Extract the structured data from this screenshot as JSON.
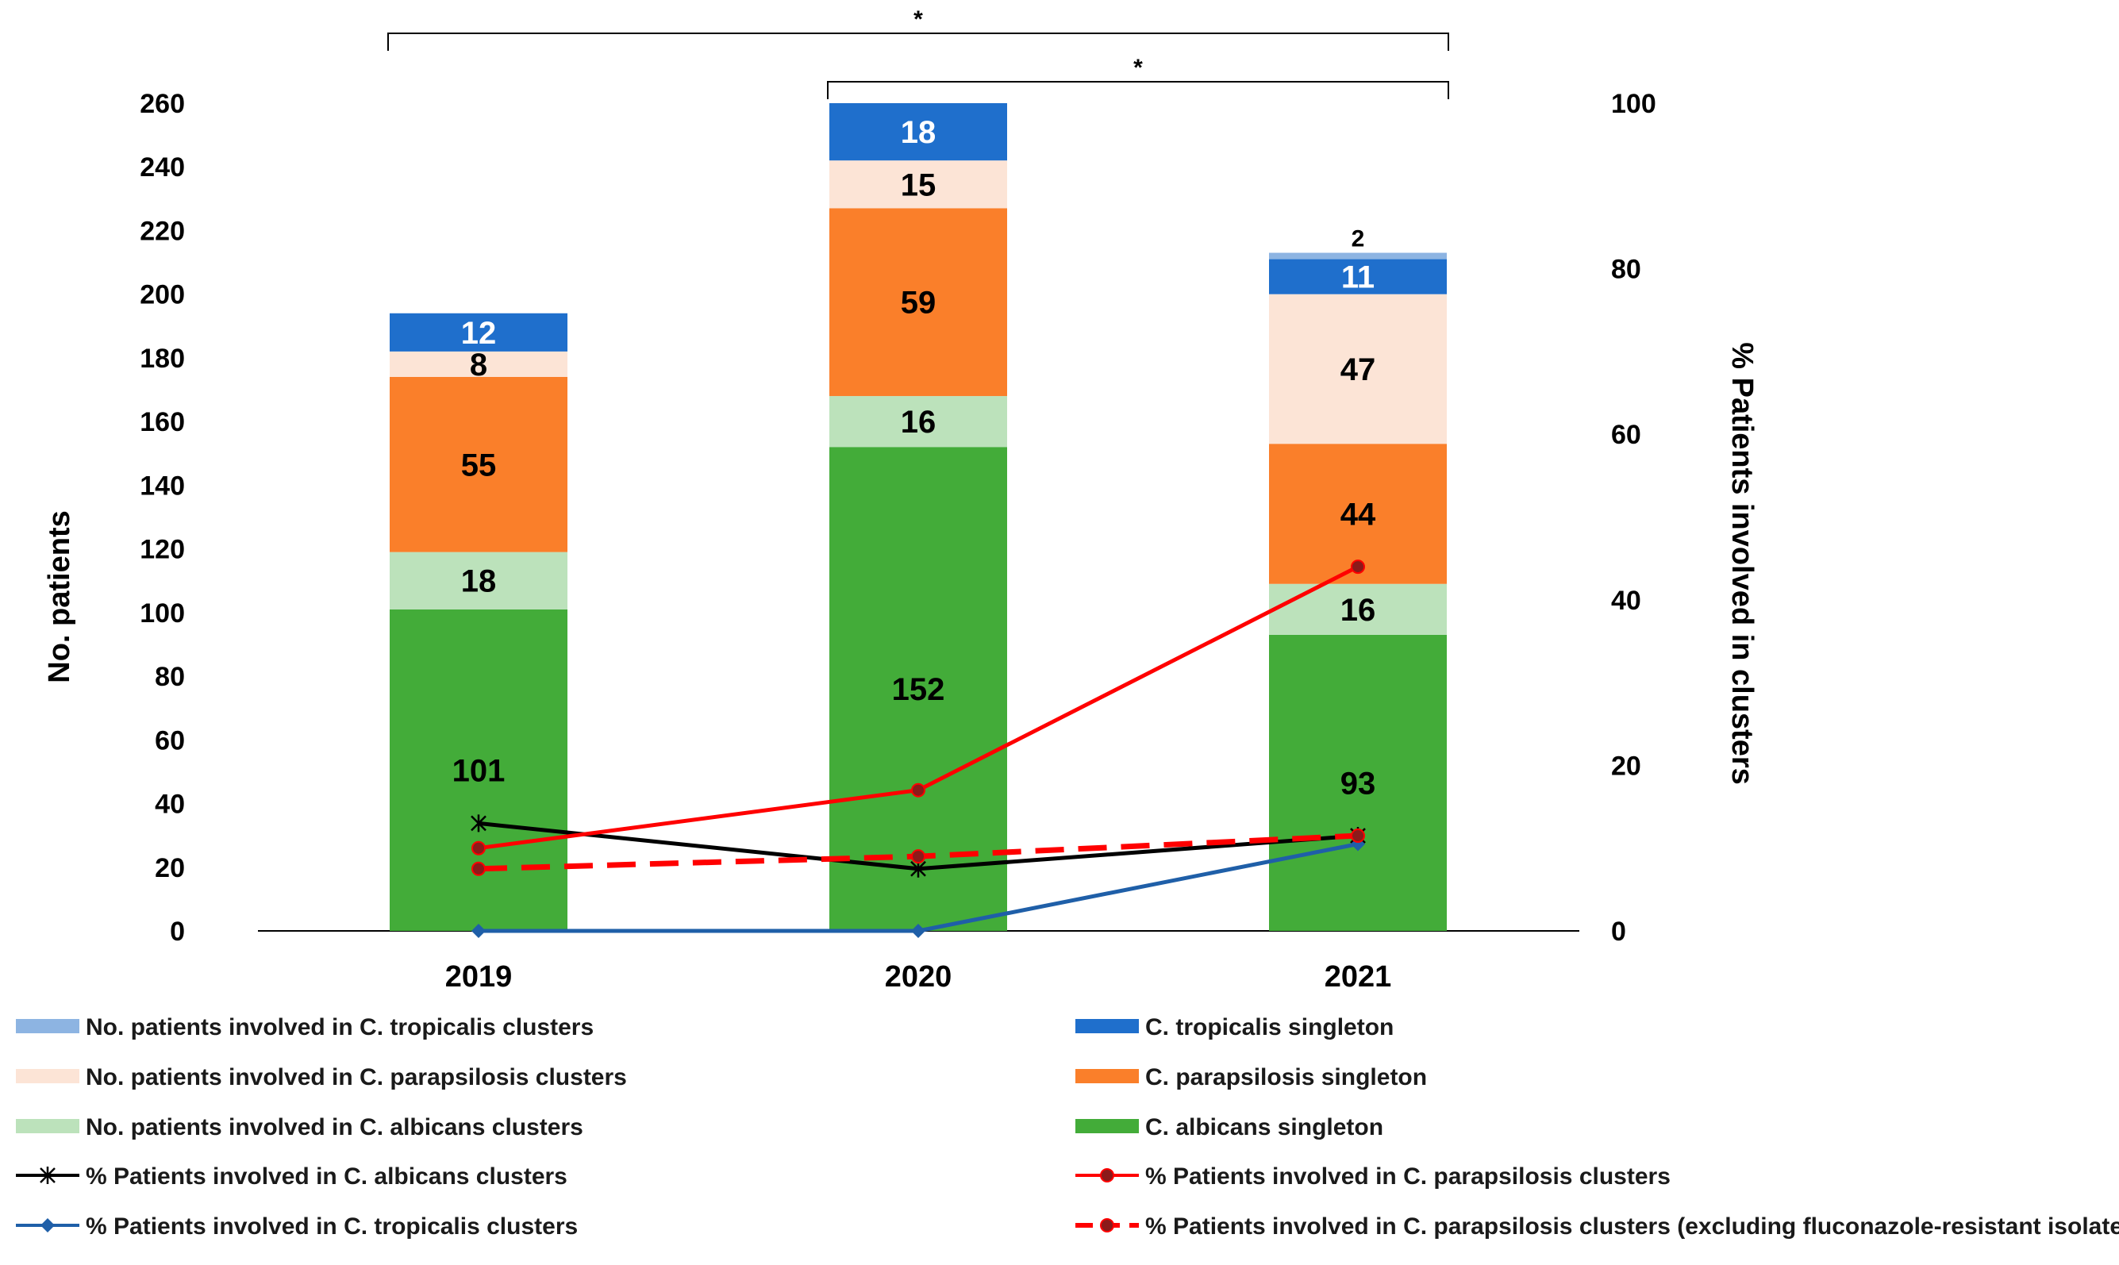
{
  "chart_data": {
    "type": "bar",
    "categories": [
      "2019",
      "2020",
      "2021"
    ],
    "y_left": {
      "label": "No. patients",
      "min": 0,
      "max": 260,
      "step": 20,
      "ticks": [
        "0",
        "20",
        "40",
        "60",
        "80",
        "100",
        "120",
        "140",
        "160",
        "180",
        "200",
        "220",
        "240",
        "260"
      ]
    },
    "y_right": {
      "label": "% Patients involved in clusters",
      "min": 0,
      "max": 100,
      "step": 20,
      "ticks": [
        "0",
        "20",
        "40",
        "60",
        "80",
        "100"
      ]
    },
    "bar_series": [
      {
        "name": "C. albicans singleton",
        "color": "#43AC39",
        "label_color": "#000000",
        "values": [
          101,
          152,
          93
        ],
        "labels": [
          "101",
          "152",
          "93"
        ]
      },
      {
        "name": "No. patients involved in C. albicans clusters",
        "color": "#BCE2BB",
        "label_color": "#000000",
        "values": [
          18,
          16,
          16
        ],
        "labels": [
          "18",
          "16",
          "16"
        ]
      },
      {
        "name": "C. parapsilosis singleton",
        "color": "#FA7F2A",
        "label_color": "#000000",
        "values": [
          55,
          59,
          44
        ],
        "labels": [
          "55",
          "59",
          "44"
        ]
      },
      {
        "name": "No. patients involved in C. parapsilosis clusters",
        "color": "#FCE4D6",
        "label_color": "#000000",
        "values": [
          8,
          15,
          47
        ],
        "labels": [
          "8",
          "15",
          "47"
        ]
      },
      {
        "name": "C. tropicalis singleton",
        "color": "#1F6FCC",
        "label_color": "#FFFFFF",
        "values": [
          12,
          18,
          11
        ],
        "labels": [
          "12",
          "18",
          "11"
        ]
      },
      {
        "name": "No. patients involved in C. tropicalis clusters",
        "color": "#8DB4E2",
        "label_color": "#000000",
        "values": [
          0,
          0,
          2
        ],
        "labels": [
          "",
          "",
          "2"
        ]
      }
    ],
    "line_series": [
      {
        "name": "% Patients involved in C. albicans clusters",
        "color": "#000000",
        "dash": "solid",
        "marker": "asterisk",
        "values": [
          13.0,
          7.5,
          11.5
        ]
      },
      {
        "name": "% Patients involved in C. tropicalis clusters",
        "color": "#1F5FA8",
        "dash": "solid",
        "marker": "diamond",
        "values": [
          0,
          0,
          10.5
        ]
      },
      {
        "name": "% Patients involved in C. parapsilosis clusters",
        "color": "#FF0000",
        "dash": "solid",
        "marker": "circle",
        "values": [
          10.0,
          17.0,
          44.0
        ]
      },
      {
        "name": "% Patients involved in C. parapsilosis clusters (excluding fluconazole-resistant isolates)",
        "color": "#FF0000",
        "dash": "dashed",
        "marker": "circle",
        "values": [
          7.5,
          9.0,
          11.5
        ]
      }
    ],
    "significance": [
      {
        "from": "2019",
        "to": "2021",
        "label": "*"
      },
      {
        "from": "2020",
        "to": "2021",
        "label": "*"
      }
    ],
    "legend": {
      "placement": "bottom",
      "left_column": [
        "No. patients involved in C. tropicalis clusters",
        "No. patients involved in C. parapsilosis clusters",
        "No. patients involved in C. albicans clusters",
        "% Patients involved in C. albicans clusters",
        "% Patients involved in C. tropicalis clusters"
      ],
      "right_column": [
        "C. tropicalis singleton",
        "C. parapsilosis singleton",
        "C. albicans singleton",
        "% Patients involved in C. parapsilosis clusters",
        "% Patients involved in C. parapsilosis clusters (excluding fluconazole-resistant isolates)"
      ]
    }
  }
}
